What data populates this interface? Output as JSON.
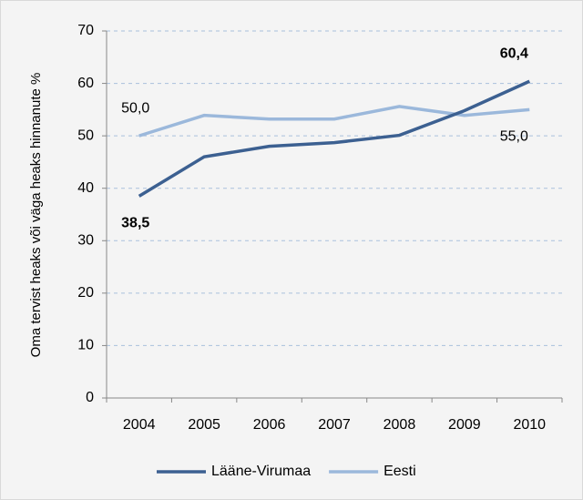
{
  "chart_data": {
    "type": "line",
    "y_label": "Oma tervist heaks või väga heaks hinnanute %",
    "categories": [
      "2004",
      "2005",
      "2006",
      "2007",
      "2008",
      "2009",
      "2010"
    ],
    "series": [
      {
        "name": "Lääne-Virumaa",
        "color": "#3c6091",
        "values": [
          38.5,
          46.0,
          48.0,
          48.7,
          50.1,
          54.8,
          60.4
        ],
        "value_labels": [
          "38,5",
          null,
          null,
          null,
          null,
          null,
          "60,4"
        ]
      },
      {
        "name": "Eesti",
        "color": "#9bb8db",
        "values": [
          50.0,
          53.9,
          53.2,
          53.2,
          55.6,
          53.9,
          55.0
        ],
        "value_labels": [
          "50,0",
          null,
          null,
          null,
          null,
          null,
          "55,0"
        ]
      }
    ],
    "ylim": [
      0,
      70
    ],
    "yticks": [
      0,
      10,
      20,
      30,
      40,
      50,
      60,
      70
    ],
    "grid": true
  }
}
